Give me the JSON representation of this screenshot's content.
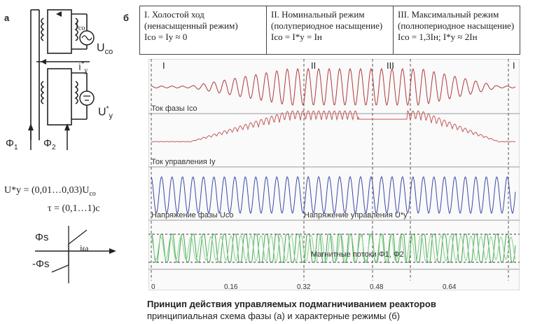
{
  "labels": {
    "a": "а",
    "b": "б"
  },
  "schematic": {
    "i_co": "i",
    "i_co_sub": "co",
    "u_co": "U",
    "u_co_sub": "co",
    "i_y": "i",
    "i_y_sup": "*",
    "i_y_sub": "y",
    "u_y": "U",
    "u_y_sup": "*",
    "u_y_sub": "y",
    "phi1": "Φ",
    "phi1_sub": "1",
    "phi2": "Φ",
    "phi2_sub": "2"
  },
  "formulas": {
    "f1": "U*y = (0,01…0,03)U",
    "f1_sub": "co",
    "f2": "τ = (0,1…1)c"
  },
  "flux_diagram": {
    "phi_s": "Φs",
    "neg_phi_s": "-Φs",
    "i_omega": "iω"
  },
  "modes": [
    {
      "title": "I. Холостой ход",
      "subtitle": "(ненасыщенный режим)",
      "formula": "Ico = Iy ≈ 0"
    },
    {
      "title": "II. Номинальный режим",
      "subtitle": "(полупериодное насыщение)",
      "formula": "Ico = I*y = Iн"
    },
    {
      "title": "III. Максимальный режим",
      "subtitle": "(полнопериодное насыщение)",
      "formula": "Ico = 1,3Iн;   I*y ≈ 2Iн"
    }
  ],
  "chart": {
    "roman": [
      "I",
      "II",
      "III",
      "I"
    ],
    "trace_labels": [
      "Ток фазы Ico",
      "Ток управления Iy",
      "Напряжение фазы Uco",
      "Напряжение управления U*y",
      "Магнитные потоки Φ1, Φ2"
    ],
    "colors": {
      "current": "#b03a3a",
      "control": "#c45a5a",
      "voltage": "#3a4aa8",
      "flux1": "#3aa84a",
      "flux2": "#8fcf8f"
    }
  },
  "chart_data": {
    "type": "line",
    "x_ticks": [
      "0",
      "0.16",
      "0.32",
      "0.48",
      "0.64"
    ]
  },
  "caption": {
    "line1": "Принцип действия управляемых подмагничиванием реакторов",
    "line2": "принципиальная схема фазы (а) и характерные режимы (б)"
  }
}
